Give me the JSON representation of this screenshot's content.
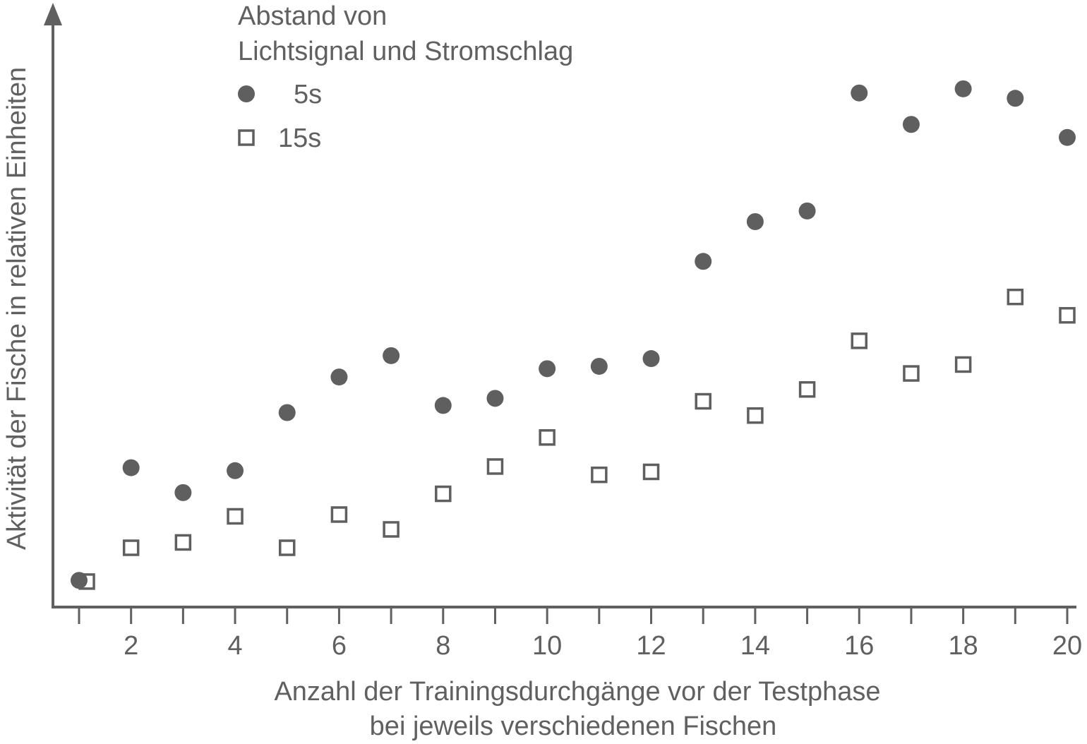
{
  "chart_data": {
    "type": "scatter",
    "title": "",
    "xlabel": [
      "Anzahl der Trainingsdurchgänge vor der Testphase",
      "bei jeweils verschiedenen Fischen"
    ],
    "ylabel": "Aktivität der Fische in relativen Einheiten",
    "xlim": [
      0.5,
      20
    ],
    "ylim": [
      0,
      100
    ],
    "x_ticks": [
      1,
      2,
      3,
      4,
      5,
      6,
      7,
      8,
      9,
      10,
      11,
      12,
      13,
      14,
      15,
      16,
      17,
      18,
      19,
      20
    ],
    "x_tick_labels": [
      "2",
      "4",
      "6",
      "8",
      "10",
      "12",
      "14",
      "16",
      "18",
      "20"
    ],
    "y_ticks": [],
    "grid": false,
    "legend": {
      "title": [
        "Abstand von",
        "Lichtsignal und Stromschlag"
      ],
      "position": "top-left"
    },
    "series": [
      {
        "name": "5s",
        "marker": "filled-circle",
        "color": "#5f5f5f",
        "points": [
          [
            1.0,
            4.5
          ],
          [
            2,
            23.5
          ],
          [
            3,
            19.3
          ],
          [
            4,
            23.0
          ],
          [
            5,
            32.8
          ],
          [
            6,
            38.8
          ],
          [
            7,
            42.4
          ],
          [
            8,
            34.0
          ],
          [
            9,
            35.2
          ],
          [
            10,
            40.2
          ],
          [
            11,
            40.6
          ],
          [
            12,
            41.9
          ],
          [
            13,
            58.3
          ],
          [
            14,
            65.0
          ],
          [
            15,
            66.8
          ],
          [
            16,
            86.7
          ],
          [
            17,
            81.4
          ],
          [
            18,
            87.4
          ],
          [
            19,
            85.8
          ],
          [
            20,
            79.2
          ]
        ]
      },
      {
        "name": "15s",
        "marker": "open-square",
        "color": "#5f5f5f",
        "points": [
          [
            1.15,
            4.3
          ],
          [
            2,
            10.0
          ],
          [
            3,
            10.9
          ],
          [
            4,
            15.3
          ],
          [
            5,
            10.0
          ],
          [
            6,
            15.6
          ],
          [
            7,
            13.1
          ],
          [
            8,
            19.1
          ],
          [
            9,
            23.7
          ],
          [
            10,
            28.6
          ],
          [
            11,
            22.3
          ],
          [
            12,
            22.8
          ],
          [
            13,
            34.7
          ],
          [
            14,
            32.3
          ],
          [
            15,
            36.7
          ],
          [
            16,
            44.9
          ],
          [
            17,
            39.4
          ],
          [
            18,
            40.9
          ],
          [
            19,
            52.3
          ],
          [
            20,
            49.2
          ]
        ]
      }
    ]
  }
}
